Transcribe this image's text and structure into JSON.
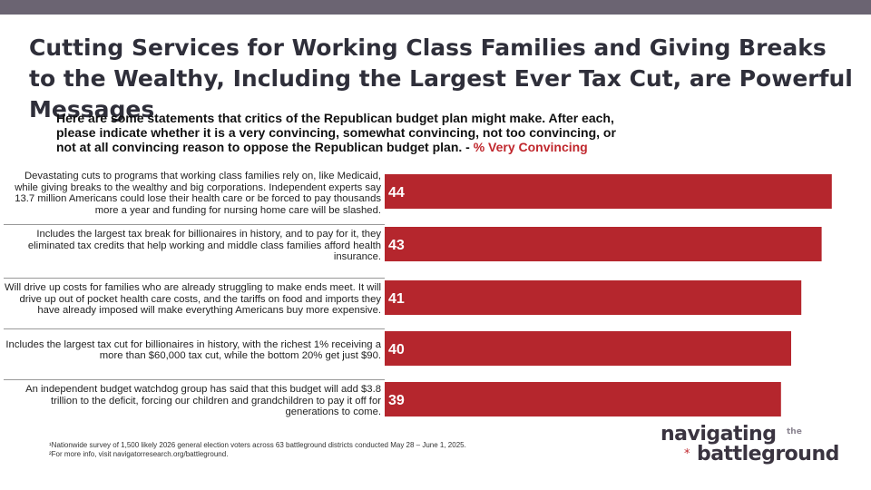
{
  "title": "Cutting Services for Working Class Families and Giving Breaks to the Wealthy, Including the Largest Ever Tax Cut, are Powerful Messages",
  "subtitle": "Here are some statements that critics of the Republican budget plan might make. After each, please indicate whether it is a very convincing, somewhat convincing, not too convincing, or not at all convincing reason to oppose the Republican budget plan. - ",
  "subtitle_metric": "% Very Convincing",
  "chart_data": {
    "type": "bar",
    "orientation": "horizontal",
    "categories": [
      "Devastating cuts to programs that working class families rely on, like Medicaid, while giving breaks to the wealthy and big corporations. Independent experts say 13.7 million Americans could lose their health care or be forced to pay thousands more a year and funding for nursing home care will be slashed.",
      "Includes the largest tax break for billionaires in history, and to pay for it, they eliminated tax credits that help working and middle class families afford health insurance.",
      "Will drive up costs for families who are already struggling to make ends meet. It will drive up out of pocket health care costs, and the tariffs on food and imports they have already imposed will make everything Americans buy more expensive.",
      "Includes the largest tax cut for billionaires in history, with the richest 1% receiving a more than $60,000 tax cut, while the bottom 20% get just $90.",
      "An independent budget watchdog group has said that this budget will add $3.8 trillion to the deficit, forcing our children and grandchildren to pay it off for generations to come."
    ],
    "values": [
      44,
      43,
      41,
      40,
      39
    ],
    "data_labels": [
      "44",
      "43",
      "41",
      "40",
      "39"
    ],
    "bar_color": "#b5262d",
    "label_color": "#ffffff"
  },
  "footnotes": [
    "¹Nationwide survey of 1,500 likely 2026 general election voters across 63 battleground districts conducted May 28 – June 1, 2025.",
    "²For more info, visit navigatorresearch.org/battleground."
  ],
  "logo": {
    "line1": "navigating",
    "the": "the",
    "star": "*",
    "line2": "battleground"
  }
}
